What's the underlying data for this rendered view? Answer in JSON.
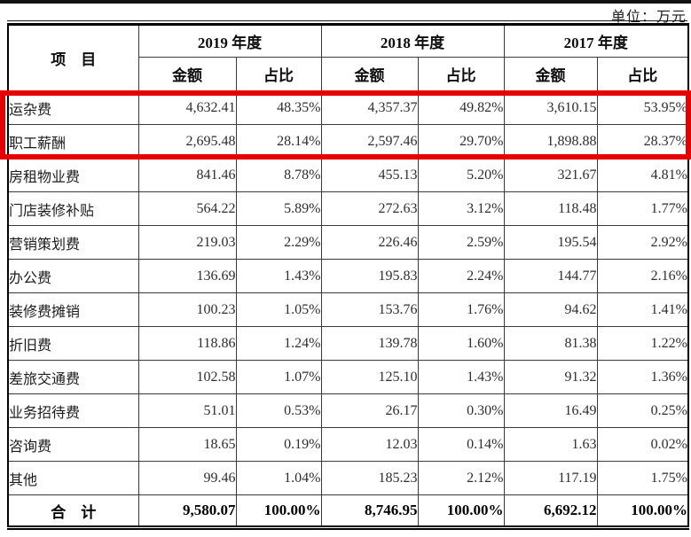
{
  "unit_label": "单位：万元",
  "accent_color": "#e60004",
  "table": {
    "item_header": "项　目",
    "year_headers": [
      "2019 年度",
      "2018 年度",
      "2017 年度"
    ],
    "sub_headers": {
      "amount": "金额",
      "ratio": "占比"
    },
    "rows": [
      {
        "item": "运杂费",
        "highlighted": true,
        "values": [
          "4,632.41",
          "48.35%",
          "4,357.37",
          "49.82%",
          "3,610.15",
          "53.95%"
        ]
      },
      {
        "item": "职工薪酬",
        "highlighted": true,
        "values": [
          "2,695.48",
          "28.14%",
          "2,597.46",
          "29.70%",
          "1,898.88",
          "28.37%"
        ]
      },
      {
        "item": "房租物业费",
        "highlighted": false,
        "values": [
          "841.46",
          "8.78%",
          "455.13",
          "5.20%",
          "321.67",
          "4.81%"
        ]
      },
      {
        "item": "门店装修补贴",
        "highlighted": false,
        "values": [
          "564.22",
          "5.89%",
          "272.63",
          "3.12%",
          "118.48",
          "1.77%"
        ]
      },
      {
        "item": "营销策划费",
        "highlighted": false,
        "values": [
          "219.03",
          "2.29%",
          "226.46",
          "2.59%",
          "195.54",
          "2.92%"
        ]
      },
      {
        "item": "办公费",
        "highlighted": false,
        "values": [
          "136.69",
          "1.43%",
          "195.83",
          "2.24%",
          "144.77",
          "2.16%"
        ]
      },
      {
        "item": "装修费摊销",
        "highlighted": false,
        "values": [
          "100.23",
          "1.05%",
          "153.76",
          "1.76%",
          "94.62",
          "1.41%"
        ]
      },
      {
        "item": "折旧费",
        "highlighted": false,
        "values": [
          "118.86",
          "1.24%",
          "139.78",
          "1.60%",
          "81.38",
          "1.22%"
        ]
      },
      {
        "item": "差旅交通费",
        "highlighted": false,
        "values": [
          "102.58",
          "1.07%",
          "125.10",
          "1.43%",
          "91.32",
          "1.36%"
        ]
      },
      {
        "item": "业务招待费",
        "highlighted": false,
        "values": [
          "51.01",
          "0.53%",
          "26.17",
          "0.30%",
          "16.49",
          "0.25%"
        ]
      },
      {
        "item": "咨询费",
        "highlighted": false,
        "values": [
          "18.65",
          "0.19%",
          "12.03",
          "0.14%",
          "1.63",
          "0.02%"
        ]
      },
      {
        "item": "其他",
        "highlighted": false,
        "values": [
          "99.46",
          "1.04%",
          "185.23",
          "2.12%",
          "117.19",
          "1.75%"
        ]
      }
    ],
    "total": {
      "item": "合　计",
      "values": [
        "9,580.07",
        "100.00%",
        "8,746.95",
        "100.00%",
        "6,692.12",
        "100.00%"
      ]
    }
  }
}
